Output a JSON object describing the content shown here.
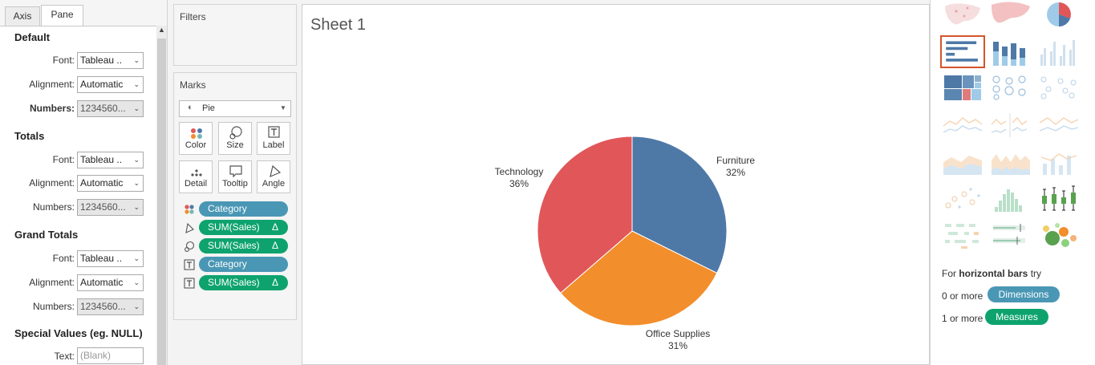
{
  "format_pane": {
    "tabs": [
      "Axis",
      "Pane"
    ],
    "active_tab": "Pane",
    "sections": [
      {
        "title": "Default",
        "rows": [
          {
            "label": "Font:",
            "value": "Tableau ..",
            "kind": "dropdown"
          },
          {
            "label": "Alignment:",
            "value": "Automatic",
            "kind": "dropdown"
          },
          {
            "label": "Numbers:",
            "value": "1234560...",
            "kind": "dropdown-gray",
            "bold": true
          }
        ]
      },
      {
        "title": "Totals",
        "rows": [
          {
            "label": "Font:",
            "value": "Tableau ..",
            "kind": "dropdown"
          },
          {
            "label": "Alignment:",
            "value": "Automatic",
            "kind": "dropdown"
          },
          {
            "label": "Numbers:",
            "value": "1234560...",
            "kind": "dropdown-gray"
          }
        ]
      },
      {
        "title": "Grand Totals",
        "rows": [
          {
            "label": "Font:",
            "value": "Tableau ..",
            "kind": "dropdown"
          },
          {
            "label": "Alignment:",
            "value": "Automatic",
            "kind": "dropdown"
          },
          {
            "label": "Numbers:",
            "value": "1234560...",
            "kind": "dropdown-gray"
          }
        ]
      },
      {
        "title": "Special Values (eg. NULL)",
        "rows": [
          {
            "label": "Text:",
            "placeholder": "(Blank)",
            "kind": "text"
          }
        ]
      }
    ]
  },
  "filters": {
    "title": "Filters"
  },
  "marks": {
    "title": "Marks",
    "mark_type": "Pie",
    "buttons": [
      {
        "label": "Color",
        "icon": "color-dots-icon"
      },
      {
        "label": "Size",
        "icon": "size-icon"
      },
      {
        "label": "Label",
        "icon": "label-icon"
      },
      {
        "label": "Detail",
        "icon": "detail-icon"
      },
      {
        "label": "Tooltip",
        "icon": "tooltip-icon"
      },
      {
        "label": "Angle",
        "icon": "angle-icon"
      }
    ],
    "pills": [
      {
        "icon": "color-dots-icon",
        "label": "Category",
        "type": "dimension",
        "delta": ""
      },
      {
        "icon": "angle-icon",
        "label": "SUM(Sales)",
        "type": "measure",
        "delta": "Δ"
      },
      {
        "icon": "size-icon",
        "label": "SUM(Sales)",
        "type": "measure",
        "delta": "Δ"
      },
      {
        "icon": "label-icon",
        "label": "Category",
        "type": "dimension",
        "delta": ""
      },
      {
        "icon": "label-icon",
        "label": "SUM(Sales)",
        "type": "measure",
        "delta": "Δ"
      }
    ]
  },
  "view": {
    "sheet_title": "Sheet 1"
  },
  "chart_data": {
    "type": "pie",
    "categories": [
      "Furniture",
      "Office Supplies",
      "Technology"
    ],
    "values": [
      32,
      31,
      36
    ],
    "labels": [
      "32%",
      "31%",
      "36%"
    ],
    "colors": [
      "#4e79a7",
      "#f28e2b",
      "#e15759"
    ]
  },
  "show_me": {
    "selected": "horizontal bars",
    "hint_prefix": "For",
    "hint_bold": "horizontal bars",
    "hint_suffix": "try",
    "requirements": [
      {
        "text": "0 or more",
        "pill": "Dimensions",
        "color": "#4a97b5"
      },
      {
        "text": "1 or more",
        "pill": "Measures",
        "color": "#0ea36e"
      }
    ]
  }
}
